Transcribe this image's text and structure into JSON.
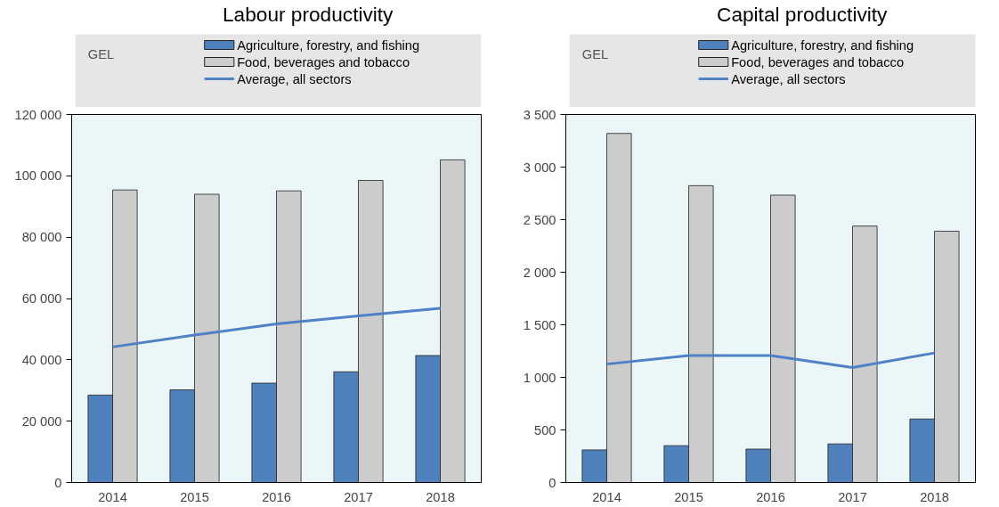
{
  "chart_data": [
    {
      "type": "bar",
      "title": "Labour productivity",
      "ylabel": "GEL",
      "categories": [
        "2014",
        "2015",
        "2016",
        "2017",
        "2018"
      ],
      "ylim": [
        0,
        120000
      ],
      "yticks": [
        {
          "value": 0,
          "label": "0"
        },
        {
          "value": 20000,
          "label": "20 000"
        },
        {
          "value": 40000,
          "label": "40 000"
        },
        {
          "value": 60000,
          "label": "60 000"
        },
        {
          "value": 80000,
          "label": "80 000"
        },
        {
          "value": 100000,
          "label": "100 000"
        },
        {
          "value": 120000,
          "label": "120 000"
        }
      ],
      "legend": "top",
      "grid": false,
      "series": [
        {
          "name": "Agriculture, forestry, and fishing",
          "color": "#4f81bd",
          "values": [
            28500,
            30200,
            32400,
            36100,
            41400
          ]
        },
        {
          "name": "Food, beverages and tobacco",
          "color": "#cccccc",
          "values": [
            95400,
            94000,
            95100,
            98500,
            105200
          ]
        },
        {
          "name": "Average, all sectors",
          "type": "line",
          "color": "#4f81c6",
          "values": [
            44200,
            48100,
            51700,
            54300,
            56800
          ]
        }
      ]
    },
    {
      "type": "bar",
      "title": "Capital productivity",
      "ylabel": "GEL",
      "categories": [
        "2014",
        "2015",
        "2016",
        "2017",
        "2018"
      ],
      "ylim": [
        0,
        3500
      ],
      "yticks": [
        {
          "value": 0,
          "label": "0"
        },
        {
          "value": 500,
          "label": "500"
        },
        {
          "value": 1000,
          "label": "1 000"
        },
        {
          "value": 1500,
          "label": "1 500"
        },
        {
          "value": 2000,
          "label": "2 000"
        },
        {
          "value": 2500,
          "label": "2 500"
        },
        {
          "value": 3000,
          "label": "3 000"
        },
        {
          "value": 3500,
          "label": "3 500"
        }
      ],
      "legend": "top",
      "grid": false,
      "series": [
        {
          "name": "Agriculture, forestry, and fishing",
          "color": "#4f81bd",
          "values": [
            310,
            350,
            318,
            367,
            604
          ]
        },
        {
          "name": "Food, beverages and tobacco",
          "color": "#cccccc",
          "values": [
            3320,
            2823,
            2733,
            2439,
            2390
          ]
        },
        {
          "name": "Average, all sectors",
          "type": "line",
          "color": "#4f81c6",
          "values": [
            1126,
            1207,
            1207,
            1093,
            1232
          ]
        }
      ]
    }
  ]
}
